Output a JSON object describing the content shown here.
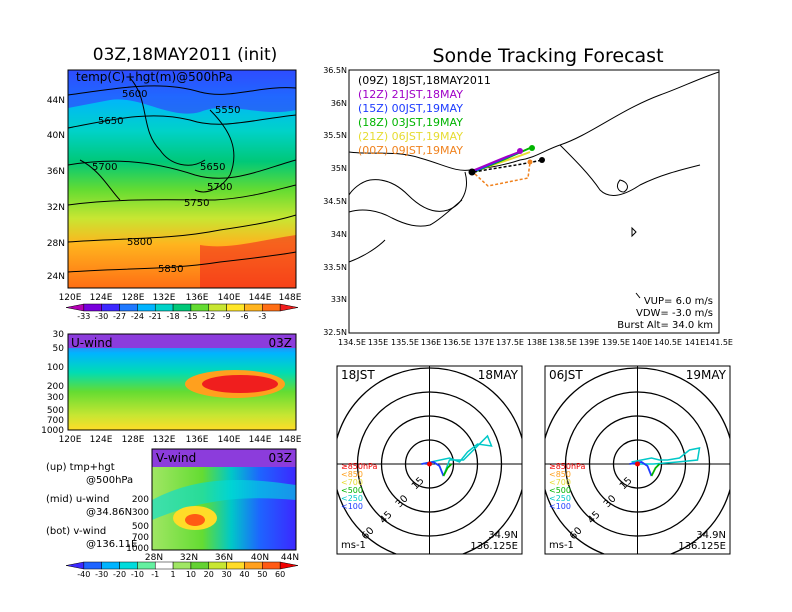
{
  "header": {
    "init_title": "03Z,18MAY2011 (init)",
    "main_title": "Sonde Tracking Forecast"
  },
  "colors": {
    "black": "#000000",
    "magenta": "#a000c8",
    "blue": "#1e3cff",
    "green": "#00b400",
    "yellow": "#e6dc32",
    "orange": "#f0821e"
  },
  "icons": [
    "launch-point-icon"
  ],
  "panel_500hpa": {
    "label": "temp(C)+hgt(m)@500hPa",
    "lat_labels": [
      "44N",
      "40N",
      "36N",
      "32N",
      "28N",
      "24N"
    ],
    "lon_labels": [
      "120E",
      "124E",
      "128E",
      "132E",
      "136E",
      "140E",
      "144E",
      "148E"
    ],
    "contour_labels": [
      "5600",
      "5550",
      "5650",
      "5650",
      "5700",
      "5700",
      "5750",
      "5800",
      "5850"
    ],
    "colorbar_labels": [
      "-33",
      "-30",
      "-27",
      "-24",
      "-21",
      "-18",
      "-15",
      "-12",
      "-9",
      "-6",
      "-3"
    ],
    "colorbar_colors": [
      "#b400b4",
      "#7800dc",
      "#3c28ff",
      "#1e78ff",
      "#00b4ff",
      "#00d2c8",
      "#00c878",
      "#64dc32",
      "#c8e632",
      "#ffe628",
      "#ffb41e",
      "#ff6e14",
      "#f01e1e"
    ]
  },
  "panel_uwind": {
    "title": "U-wind",
    "time": "03Z",
    "levels": [
      "30",
      "50",
      "100",
      "200",
      "300",
      "500",
      "700",
      "1000"
    ],
    "lon_labels": [
      "120E",
      "124E",
      "128E",
      "132E",
      "136E",
      "140E",
      "144E",
      "148E"
    ]
  },
  "panel_vwind": {
    "title": "V-wind",
    "time": "03Z",
    "levels": [
      "200",
      "300",
      "500",
      "700",
      "1000"
    ],
    "lat_labels": [
      "28N",
      "32N",
      "36N",
      "40N",
      "44N"
    ],
    "colorbar_labels": [
      "-40",
      "-30",
      "-20",
      "-10",
      "-1",
      "1",
      "10",
      "20",
      "30",
      "40",
      "50",
      "60"
    ],
    "colorbar_colors": [
      "#3c28ff",
      "#1e64ff",
      "#00b4ff",
      "#00dcdc",
      "#64f0a0",
      "#ffffff",
      "#a0e664",
      "#64d232",
      "#c8e632",
      "#ffdc28",
      "#ffa01e",
      "#ff5a14",
      "#f00000"
    ]
  },
  "legend_notes": {
    "up1": "(up) tmp+hgt",
    "up2": "@500hPa",
    "mid1": "(mid) u-wind",
    "mid2": "@34.86N",
    "bot1": "(bot) v-wind",
    "bot2": "@136.11E"
  },
  "track_map": {
    "lat_labels": [
      "36.5N",
      "36N",
      "35.5N",
      "35N",
      "34.5N",
      "34N",
      "33.5N",
      "33N",
      "32.5N"
    ],
    "lon_labels": [
      "134.5E",
      "135E",
      "135.5E",
      "136E",
      "136.5E",
      "137E",
      "137.5E",
      "138E",
      "138.5E",
      "139E",
      "139.5E",
      "140E",
      "140.5E",
      "141E",
      "141.5E"
    ],
    "legend": [
      {
        "text": "(09Z)  18JST,18MAY2011",
        "color": "#000000"
      },
      {
        "text": "(12Z)  21JST,18MAY",
        "color": "#a000c8"
      },
      {
        "text": "(15Z)  00JST,19MAY",
        "color": "#1e3cff"
      },
      {
        "text": "(18Z)  03JST,19MAY",
        "color": "#00b400"
      },
      {
        "text": "(21Z)  06JST,19MAY",
        "color": "#e6dc32"
      },
      {
        "text": "(00Z)  09JST,19MAY",
        "color": "#f0821e"
      }
    ],
    "vup": "VUP=  6.0  m/s",
    "vdw": "VDW=  -3.0  m/s",
    "burst": "Burst Alt=  34.0  km"
  },
  "hodographs": [
    {
      "left": "18JST",
      "right": "18MAY",
      "rings": [
        "15",
        "30",
        "45",
        "60"
      ],
      "legend": [
        "≥850hPa",
        "<850",
        "<700",
        "<500",
        "<250",
        "<100"
      ],
      "legend_colors": [
        "#f00000",
        "#ffa01e",
        "#e6dc32",
        "#00b400",
        "#00c8c8",
        "#1e3cff"
      ],
      "unit": "ms-1",
      "lat": "34.9N",
      "lon": "136.125E"
    },
    {
      "left": "06JST",
      "right": "19MAY",
      "rings": [
        "15",
        "30",
        "45",
        "60"
      ],
      "legend": [
        "≥850hPa",
        "<850",
        "<700",
        "<500",
        "<250",
        "<100"
      ],
      "legend_colors": [
        "#f00000",
        "#ffa01e",
        "#e6dc32",
        "#00b400",
        "#00c8c8",
        "#1e3cff"
      ],
      "unit": "ms-1",
      "lat": "34.9N",
      "lon": "136.125E"
    }
  ]
}
